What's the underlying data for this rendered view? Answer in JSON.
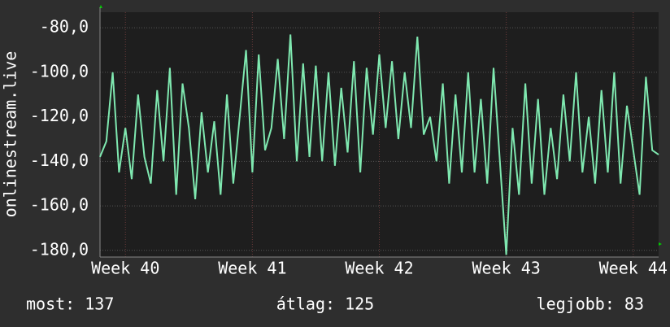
{
  "chart_data": {
    "type": "line",
    "ylabel": "onlinestream.live",
    "x": [
      39.8,
      39.85,
      39.9,
      39.95,
      40.0,
      40.05,
      40.1,
      40.15,
      40.2,
      40.25,
      40.3,
      40.35,
      40.4,
      40.45,
      40.5,
      40.55,
      40.6,
      40.65,
      40.7,
      40.75,
      40.8,
      40.85,
      40.9,
      40.95,
      41.0,
      41.05,
      41.1,
      41.15,
      41.2,
      41.25,
      41.3,
      41.35,
      41.4,
      41.45,
      41.5,
      41.55,
      41.6,
      41.65,
      41.7,
      41.75,
      41.8,
      41.85,
      41.9,
      41.95,
      42.0,
      42.05,
      42.1,
      42.15,
      42.2,
      42.25,
      42.3,
      42.35,
      42.4,
      42.45,
      42.5,
      42.55,
      42.6,
      42.65,
      42.7,
      42.75,
      42.8,
      42.85,
      42.9,
      42.95,
      43.0,
      43.05,
      43.1,
      43.15,
      43.2,
      43.25,
      43.3,
      43.35,
      43.4,
      43.45,
      43.5,
      43.55,
      43.6,
      43.65,
      43.7,
      43.75,
      43.8,
      43.85,
      43.9,
      43.95,
      44.0,
      44.05,
      44.1,
      44.15,
      44.2
    ],
    "series": [
      {
        "color": "#7fe8b0",
        "values": [
          -138,
          -131,
          -100,
          -145,
          -125,
          -148,
          -110,
          -138,
          -150,
          -108,
          -140,
          -98,
          -155,
          -105,
          -125,
          -157,
          -118,
          -145,
          -122,
          -155,
          -110,
          -150,
          -120,
          -90,
          -145,
          -92,
          -135,
          -125,
          -94,
          -130,
          -83,
          -140,
          -96,
          -138,
          -97,
          -140,
          -100,
          -142,
          -107,
          -136,
          -95,
          -145,
          -98,
          -128,
          -92,
          -125,
          -95,
          -130,
          -100,
          -125,
          -84,
          -128,
          -120,
          -140,
          -105,
          -150,
          -110,
          -145,
          -100,
          -145,
          -112,
          -150,
          -98,
          -140,
          -182,
          -125,
          -155,
          -105,
          -150,
          -112,
          -155,
          -125,
          -148,
          -110,
          -140,
          -100,
          -145,
          -120,
          -150,
          -108,
          -145,
          -100,
          -150,
          -115,
          -135,
          -155,
          -102,
          -135,
          -137
        ]
      }
    ],
    "xlim": [
      39.8,
      44.2
    ],
    "xticks": [
      {
        "value": 40,
        "label": "Week 40"
      },
      {
        "value": 41,
        "label": "Week 41"
      },
      {
        "value": 42,
        "label": "Week 42"
      },
      {
        "value": 43,
        "label": "Week 43"
      },
      {
        "value": 44,
        "label": "Week 44"
      }
    ],
    "ylim": [
      -183,
      -73
    ],
    "yticks": [
      {
        "value": -80,
        "label": "-80,0"
      },
      {
        "value": -100,
        "label": "-100,0"
      },
      {
        "value": -120,
        "label": "-120,0"
      },
      {
        "value": -140,
        "label": "-140,0"
      },
      {
        "value": -160,
        "label": "-160,0"
      },
      {
        "value": -180,
        "label": "-180,0"
      }
    ],
    "grid": true,
    "annotations": [
      "most: 137",
      "átlag: 125",
      "legjobb: 83"
    ]
  }
}
